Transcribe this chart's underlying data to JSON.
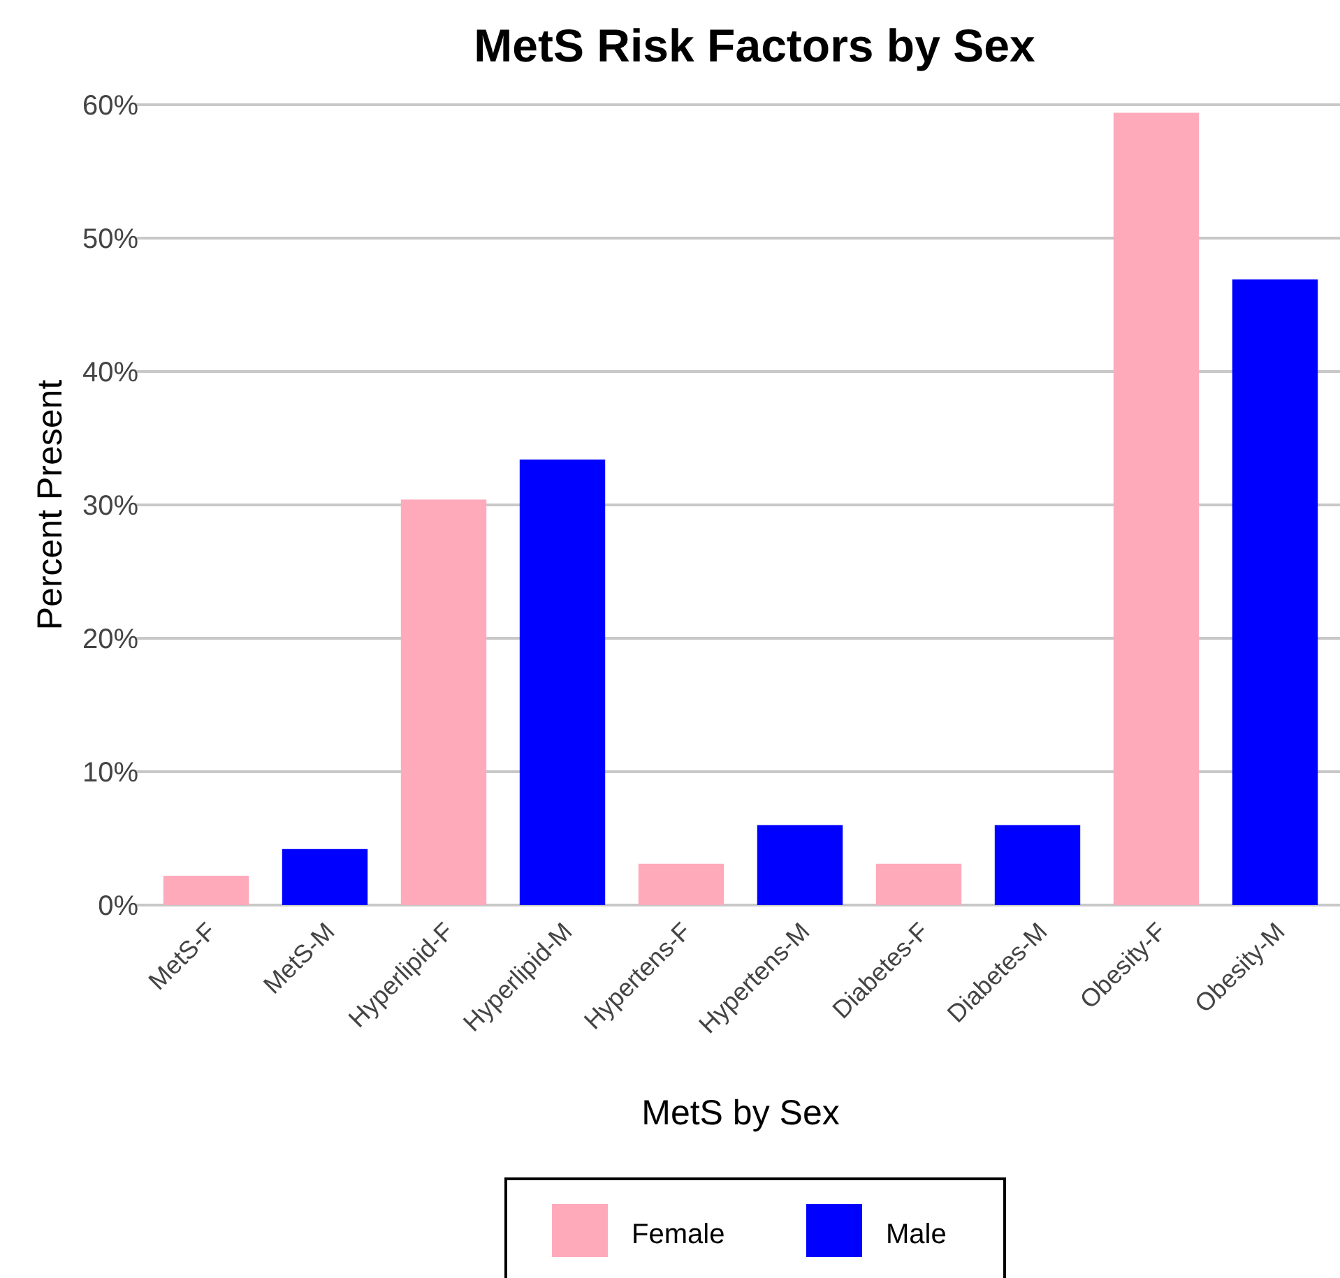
{
  "chart_data": {
    "type": "bar",
    "title": "MetS Risk Factors by Sex",
    "xlabel": "MetS by Sex",
    "ylabel": "Percent Present",
    "categories": [
      "MetS-F",
      "MetS-M",
      "Hyperlipid-F",
      "Hyperlipid-M",
      "Hypertens-F",
      "Hypertens-M",
      "Diabetes-F",
      "Diabetes-M",
      "Obesity-F",
      "Obesity-M"
    ],
    "series": [
      {
        "name": "Female",
        "color": "#ffaabb",
        "values": [
          2.2,
          null,
          30.4,
          null,
          3.1,
          null,
          3.1,
          null,
          59.4,
          null
        ]
      },
      {
        "name": "Male",
        "color": "#0000ff",
        "values": [
          null,
          4.2,
          null,
          33.4,
          null,
          6.0,
          null,
          6.0,
          null,
          46.9
        ]
      }
    ],
    "ylim": [
      0,
      60
    ],
    "yticks": [
      {
        "value": 0,
        "label": "0%"
      },
      {
        "value": 10,
        "label": "10%"
      },
      {
        "value": 20,
        "label": "20%"
      },
      {
        "value": 30,
        "label": "30%"
      },
      {
        "value": 40,
        "label": "40%"
      },
      {
        "value": 50,
        "label": "50%"
      },
      {
        "value": 60,
        "label": "60%"
      }
    ],
    "grid": "y",
    "legend": "bottom"
  }
}
